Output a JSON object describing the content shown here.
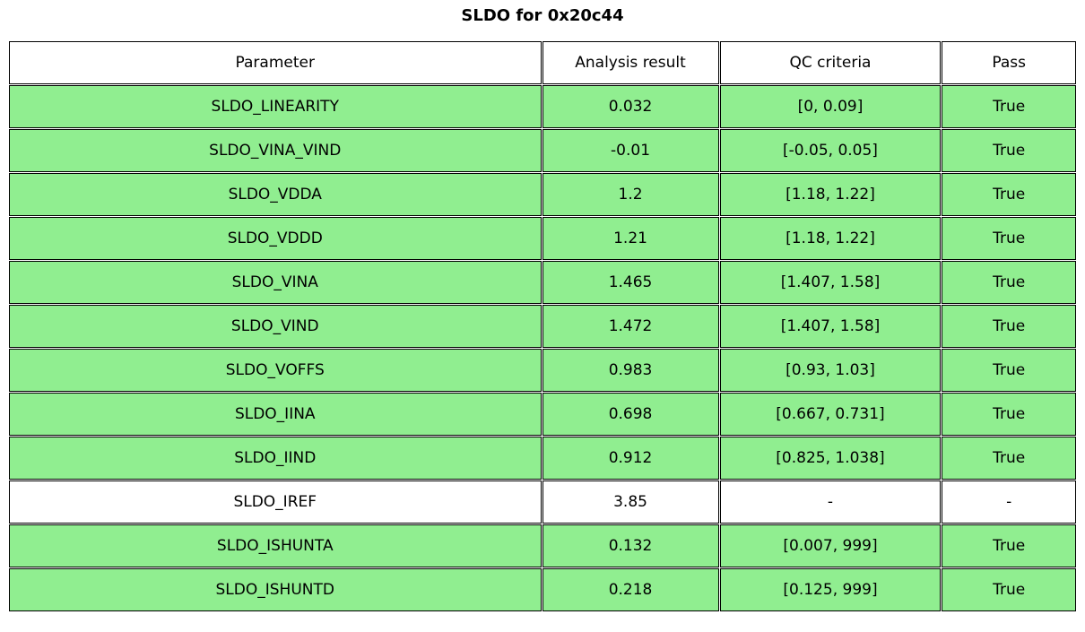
{
  "title": "SLDO for 0x20c44",
  "colors": {
    "pass_row_bg": "#90EE90",
    "neutral_row_bg": "#ffffff",
    "border": "#000000",
    "text": "#000000",
    "page_bg": "#ffffff"
  },
  "chart_data": {
    "type": "table",
    "title": "SLDO for 0x20c44",
    "columns": [
      "Parameter",
      "Analysis result",
      "QC criteria",
      "Pass"
    ],
    "rows": [
      {
        "parameter": "SLDO_LINEARITY",
        "result": "0.032",
        "criteria": "[0, 0.09]",
        "pass": "True",
        "highlight": true
      },
      {
        "parameter": "SLDO_VINA_VIND",
        "result": "-0.01",
        "criteria": "[-0.05, 0.05]",
        "pass": "True",
        "highlight": true
      },
      {
        "parameter": "SLDO_VDDA",
        "result": "1.2",
        "criteria": "[1.18, 1.22]",
        "pass": "True",
        "highlight": true
      },
      {
        "parameter": "SLDO_VDDD",
        "result": "1.21",
        "criteria": "[1.18, 1.22]",
        "pass": "True",
        "highlight": true
      },
      {
        "parameter": "SLDO_VINA",
        "result": "1.465",
        "criteria": "[1.407, 1.58]",
        "pass": "True",
        "highlight": true
      },
      {
        "parameter": "SLDO_VIND",
        "result": "1.472",
        "criteria": "[1.407, 1.58]",
        "pass": "True",
        "highlight": true
      },
      {
        "parameter": "SLDO_VOFFS",
        "result": "0.983",
        "criteria": "[0.93, 1.03]",
        "pass": "True",
        "highlight": true
      },
      {
        "parameter": "SLDO_IINA",
        "result": "0.698",
        "criteria": "[0.667, 0.731]",
        "pass": "True",
        "highlight": true
      },
      {
        "parameter": "SLDO_IIND",
        "result": "0.912",
        "criteria": "[0.825, 1.038]",
        "pass": "True",
        "highlight": true
      },
      {
        "parameter": "SLDO_IREF",
        "result": "3.85",
        "criteria": "-",
        "pass": "-",
        "highlight": false
      },
      {
        "parameter": "SLDO_ISHUNTA",
        "result": "0.132",
        "criteria": "[0.007, 999]",
        "pass": "True",
        "highlight": true
      },
      {
        "parameter": "SLDO_ISHUNTD",
        "result": "0.218",
        "criteria": "[0.125, 999]",
        "pass": "True",
        "highlight": true
      }
    ]
  }
}
